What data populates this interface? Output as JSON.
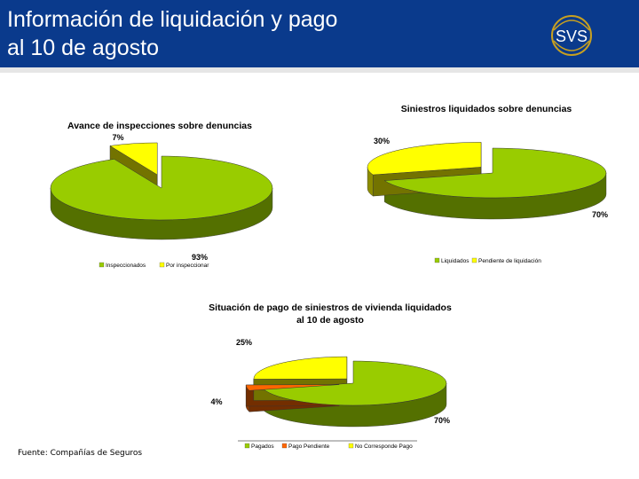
{
  "header": {
    "title_line1": "Información de liquidación y pago",
    "title_line2": "al 10 de agosto",
    "logo_text": "SVS",
    "bg_color": "#0a3a8c",
    "logo_color": "#c8a020"
  },
  "footer": {
    "source": "Fuente: Compañías de Seguros"
  },
  "chart_data": [
    {
      "type": "pie",
      "title": "Avance de inspecciones sobre denuncias",
      "categories": [
        "Inspeccionados",
        "Por inspeccionar"
      ],
      "values": [
        93,
        7
      ],
      "data_labels": [
        "93%",
        "7%"
      ],
      "colors": [
        "#99cc00",
        "#ffff00"
      ],
      "legend_position": "bottom"
    },
    {
      "type": "pie",
      "title": "Siniestros liquidados sobre denuncias",
      "categories": [
        "Liquidados",
        "Pendiente de liquidación"
      ],
      "values": [
        70,
        30
      ],
      "data_labels": [
        "70%",
        "30%"
      ],
      "colors": [
        "#99cc00",
        "#ffff00"
      ],
      "legend_position": "bottom"
    },
    {
      "type": "pie",
      "title": "Situación de pago de siniestros de vivienda liquidados al 10 de agosto",
      "title_lines": [
        "Situación de pago de siniestros de vivienda liquidados",
        "al 10 de agosto"
      ],
      "categories": [
        "Pagados",
        "Pago Pendiente",
        "No Corresponde Pago"
      ],
      "values": [
        70,
        4,
        25
      ],
      "data_labels": [
        "70%",
        "4%",
        "25%"
      ],
      "colors": [
        "#99cc00",
        "#ff6600",
        "#ffff00"
      ],
      "legend_position": "bottom"
    }
  ]
}
